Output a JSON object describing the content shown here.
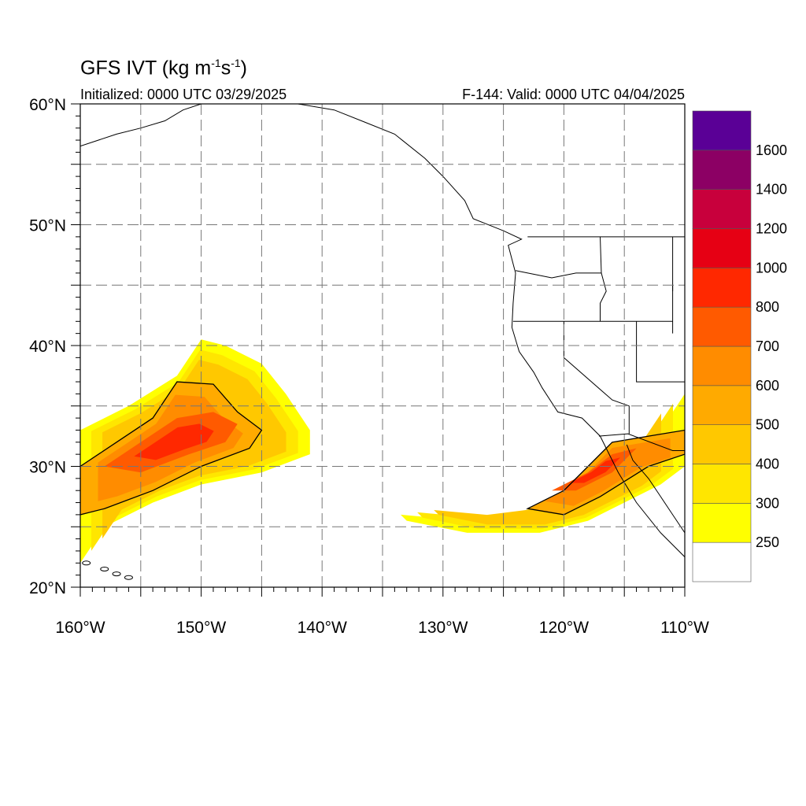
{
  "title": {
    "main": "GFS IVT (kg m",
    "exp1": "-1",
    "mid": "s",
    "exp2": "-1",
    "close": ")"
  },
  "initialized": "Initialized: 0000 UTC 03/29/2025",
  "valid": "F-144: Valid: 0000 UTC 04/04/2025",
  "map": {
    "lon_range": [
      -160,
      -110
    ],
    "lat_range": [
      20,
      60
    ],
    "lon_ticks": [
      {
        "value": -160,
        "label": "160°W"
      },
      {
        "value": -150,
        "label": "150°W"
      },
      {
        "value": -140,
        "label": "140°W"
      },
      {
        "value": -130,
        "label": "130°W"
      },
      {
        "value": -120,
        "label": "120°W"
      },
      {
        "value": -110,
        "label": "110°W"
      }
    ],
    "lat_ticks": [
      {
        "value": 20,
        "label": "20°N"
      },
      {
        "value": 30,
        "label": "30°N"
      },
      {
        "value": 40,
        "label": "40°N"
      },
      {
        "value": 50,
        "label": "50°N"
      },
      {
        "value": 60,
        "label": "60°N"
      }
    ],
    "grid_lon_step": 5,
    "grid_lat_step": 5,
    "gridlines": "dashed"
  },
  "colorbar": {
    "levels": [
      250,
      300,
      400,
      500,
      600,
      700,
      800,
      1000,
      1200,
      1400,
      1600
    ],
    "colors": [
      "#ffffff",
      "#ffff00",
      "#ffe600",
      "#ffc800",
      "#ffaa00",
      "#ff8c00",
      "#ff5a00",
      "#ff2800",
      "#e60014",
      "#c8003c",
      "#8c0064",
      "#5a0096"
    ]
  },
  "features": {
    "pacific_ar": {
      "description_levels": "peak ~800",
      "outer_250": [
        [
          -160,
          25
        ],
        [
          -160,
          33
        ],
        [
          -156,
          35
        ],
        [
          -152,
          37.5
        ],
        [
          -150,
          40.5
        ],
        [
          -148,
          40
        ],
        [
          -145,
          38.5
        ],
        [
          -143,
          36
        ],
        [
          -141,
          33
        ],
        [
          -141,
          31
        ],
        [
          -145,
          29.5
        ],
        [
          -150,
          28.5
        ],
        [
          -154,
          27
        ],
        [
          -158,
          25
        ],
        [
          -160,
          22
        ]
      ],
      "core_500": [
        [
          -160,
          26
        ],
        [
          -160,
          30
        ],
        [
          -157,
          32
        ],
        [
          -154,
          34
        ],
        [
          -152,
          37
        ],
        [
          -149,
          36.8
        ],
        [
          -147,
          34.5
        ],
        [
          -145,
          33
        ],
        [
          -146,
          31.5
        ],
        [
          -150,
          30
        ],
        [
          -154,
          28
        ],
        [
          -158,
          26.5
        ]
      ],
      "core_700": [
        [
          -158,
          30
        ],
        [
          -155,
          32
        ],
        [
          -152,
          34
        ],
        [
          -149,
          34.5
        ],
        [
          -147,
          33.5
        ],
        [
          -148,
          32
        ],
        [
          -151,
          31
        ],
        [
          -155,
          29.5
        ]
      ]
    },
    "california_ar": {
      "description_levels": "peak ~700",
      "outer_250": [
        [
          -133.5,
          26
        ],
        [
          -128,
          25.5
        ],
        [
          -124,
          26
        ],
        [
          -120,
          27
        ],
        [
          -117,
          29
        ],
        [
          -114,
          31
        ],
        [
          -112,
          33
        ],
        [
          -110,
          36
        ],
        [
          -110,
          30
        ],
        [
          -112,
          28.5
        ],
        [
          -115,
          27
        ],
        [
          -118,
          25.5
        ],
        [
          -122,
          24.5
        ],
        [
          -128,
          24.5
        ],
        [
          -133,
          25.5
        ]
      ],
      "core_500": [
        [
          -123,
          26.5
        ],
        [
          -120,
          28
        ],
        [
          -118,
          30
        ],
        [
          -116,
          32
        ],
        [
          -113,
          32.5
        ],
        [
          -110,
          33
        ],
        [
          -110,
          31
        ],
        [
          -113,
          30
        ],
        [
          -117,
          27.5
        ],
        [
          -120,
          26
        ]
      ],
      "core_700": [
        [
          -121,
          28
        ],
        [
          -118,
          29.5
        ],
        [
          -116,
          31
        ],
        [
          -114,
          31.5
        ],
        [
          -116,
          29.5
        ],
        [
          -119,
          28
        ]
      ]
    }
  }
}
